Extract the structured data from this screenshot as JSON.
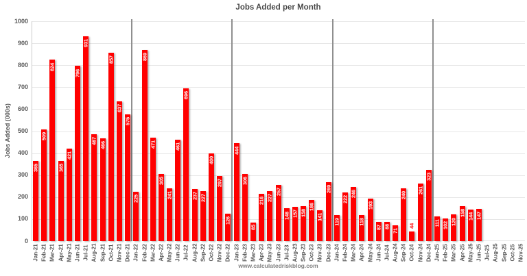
{
  "colors": {
    "bar": "#FF0000",
    "value_label_inside": "#FFFFFF",
    "value_label_outside": "#FF0000",
    "title_text": "#4A4A4A",
    "axis_text": "#595959",
    "grid_line": "#E7E7E7",
    "axis_line": "#C9C9C9",
    "separator_line": "#8F8F8F",
    "footer_text": "#808080",
    "background": "#FFFFFF"
  },
  "chart_data": {
    "type": "bar",
    "title": "Jobs Added per Month",
    "xlabel": "",
    "ylabel": "Jobs Added (000s)",
    "footer": "www.calculatedriskblog.com",
    "ylim": [
      0,
      1000
    ],
    "ytick_interval": 100,
    "yticks": [
      0,
      100,
      200,
      300,
      400,
      500,
      600,
      700,
      800,
      900,
      1000
    ],
    "grid": true,
    "legend": "none",
    "year_separators_before": [
      "Jan-22",
      "Jan-23",
      "Jan-24",
      "Jan-25"
    ],
    "categories": [
      "Jan-21",
      "Feb-21",
      "Mar-21",
      "Apr-21",
      "May-21",
      "Jun-21",
      "Jul-21",
      "Aug-21",
      "Sep-21",
      "Oct-21",
      "Nov-21",
      "Dec-21",
      "Jan-22",
      "Feb-22",
      "Mar-22",
      "Apr-22",
      "May-22",
      "Jun-22",
      "Jul-22",
      "Aug-22",
      "Sep-22",
      "Oct-22",
      "Nov-22",
      "Dec-22",
      "Jan-23",
      "Feb-23",
      "Mar-23",
      "Apr-23",
      "May-23",
      "Jun-23",
      "Jul-23",
      "Aug-23",
      "Sep-23",
      "Oct-23",
      "Nov-23",
      "Dec-23",
      "Jan-24",
      "Feb-24",
      "Mar-24",
      "Apr-24",
      "May-24",
      "Jun-24",
      "Jul-24",
      "Aug-24",
      "Sep-24",
      "Oct-24",
      "Nov-24",
      "Dec-24",
      "Jan-25",
      "Feb-25",
      "Mar-25",
      "Apr-25",
      "May-25",
      "Jun-25",
      "Jul-25",
      "Aug-25",
      "Sep-25",
      "Oct-25",
      "Nov-25"
    ],
    "values": [
      365,
      509,
      824,
      365,
      421,
      796,
      931,
      487,
      466,
      857,
      637,
      575,
      225,
      869,
      471,
      305,
      241,
      461,
      696,
      237,
      227,
      400,
      297,
      126,
      444,
      306,
      85,
      216,
      227,
      257,
      148,
      157,
      158,
      186,
      141,
      269,
      119,
      222,
      246,
      118,
      193,
      87,
      88,
      71,
      240,
      44,
      261,
      323,
      111,
      102,
      120,
      158,
      144,
      147,
      null,
      null,
      null,
      null,
      null
    ]
  }
}
